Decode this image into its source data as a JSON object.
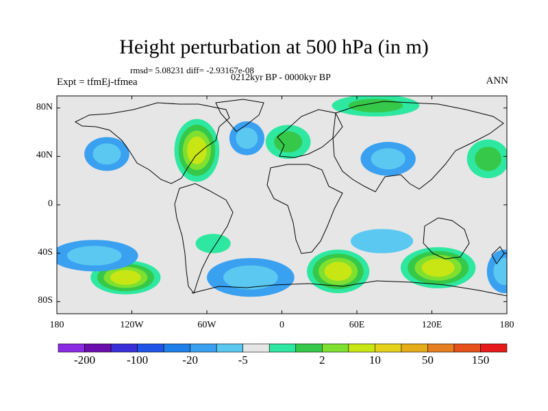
{
  "title": "Height perturbation at 500 hPa (in m)",
  "stats_text": "rmsd= 5.08231 diff= -2.93167e-08",
  "period_text": "0212kyr BP - 0000kyr BP",
  "experiment_text": "Expt = tfmEj-tfmea",
  "season_text": "ANN",
  "colors": {
    "background_fill": "#e6e6e6",
    "coastline": "#000000"
  },
  "map": {
    "projection": "cylindrical equidistant",
    "lon_range": [
      -180,
      180
    ],
    "lat_range": [
      -90,
      90
    ],
    "lat_ticks": [
      {
        "value": 80,
        "label": "80N"
      },
      {
        "value": 40,
        "label": "40N"
      },
      {
        "value": 0,
        "label": "0"
      },
      {
        "value": -40,
        "label": "40S"
      },
      {
        "value": -80,
        "label": "80S"
      }
    ],
    "lon_ticks": [
      {
        "value": -180,
        "label": "180"
      },
      {
        "value": -120,
        "label": "120W"
      },
      {
        "value": -60,
        "label": "60W"
      },
      {
        "value": 0,
        "label": "0"
      },
      {
        "value": 60,
        "label": "60E"
      },
      {
        "value": 120,
        "label": "120E"
      },
      {
        "value": 180,
        "label": "180"
      }
    ],
    "anomaly_regions": [
      {
        "name": "north-america-positive",
        "lon": -68,
        "lat": 45,
        "rlon": 18,
        "rlat": 26,
        "level": 3
      },
      {
        "name": "europe-positive",
        "lon": 5,
        "lat": 52,
        "rlon": 18,
        "rlat": 14,
        "level": 2
      },
      {
        "name": "arctic-positive",
        "lon": 75,
        "lat": 82,
        "rlon": 35,
        "rlat": 9,
        "level": 2
      },
      {
        "name": "north-pacific-negative",
        "lon": -140,
        "lat": 42,
        "rlon": 18,
        "rlat": 14,
        "level": -2
      },
      {
        "name": "north-atlantic-negative",
        "lon": -28,
        "lat": 55,
        "rlon": 14,
        "rlat": 14,
        "level": -2
      },
      {
        "name": "east-asia-negative",
        "lon": 85,
        "lat": 38,
        "rlon": 22,
        "rlat": 14,
        "level": -2
      },
      {
        "name": "northwest-pacific-positive",
        "lon": 165,
        "lat": 38,
        "rlon": 17,
        "rlat": 16,
        "level": 2
      },
      {
        "name": "south-pacific-positive",
        "lon": -125,
        "lat": -60,
        "rlon": 28,
        "rlat": 14,
        "level": 3
      },
      {
        "name": "south-pacific-negative",
        "lon": -150,
        "lat": -42,
        "rlon": 35,
        "rlat": 13,
        "level": -2
      },
      {
        "name": "south-atlantic-negative",
        "lon": -25,
        "lat": -60,
        "rlon": 35,
        "rlat": 16,
        "level": -2
      },
      {
        "name": "south-america-positive",
        "lon": -55,
        "lat": -32,
        "rlon": 14,
        "rlat": 8,
        "level": 1
      },
      {
        "name": "southern-indian-positive",
        "lon": 45,
        "lat": -55,
        "rlon": 25,
        "rlat": 18,
        "level": 3
      },
      {
        "name": "australia-positive",
        "lon": 125,
        "lat": -52,
        "rlon": 30,
        "rlat": 17,
        "level": 3
      },
      {
        "name": "indian-ocean-negative",
        "lon": 80,
        "lat": -30,
        "rlon": 25,
        "rlat": 10,
        "level": -1
      },
      {
        "name": "southwest-pacific-negative",
        "lon": 178,
        "lat": -55,
        "rlon": 14,
        "rlat": 18,
        "level": -2
      }
    ]
  },
  "colorbar": {
    "colors": [
      "#8a2be2",
      "#6a0dad",
      "#3a2fd9",
      "#1f55e6",
      "#1f7fe8",
      "#3aa0f0",
      "#5ac8f0",
      "#e6e6e6",
      "#2ee7a0",
      "#36c849",
      "#7fe030",
      "#c8e614",
      "#e6d21a",
      "#e6ac1a",
      "#e67e22",
      "#e6501a",
      "#e61a1a"
    ],
    "labels": [
      "-200",
      "-100",
      "-20",
      "-5",
      "2",
      "10",
      "50",
      "150"
    ]
  }
}
